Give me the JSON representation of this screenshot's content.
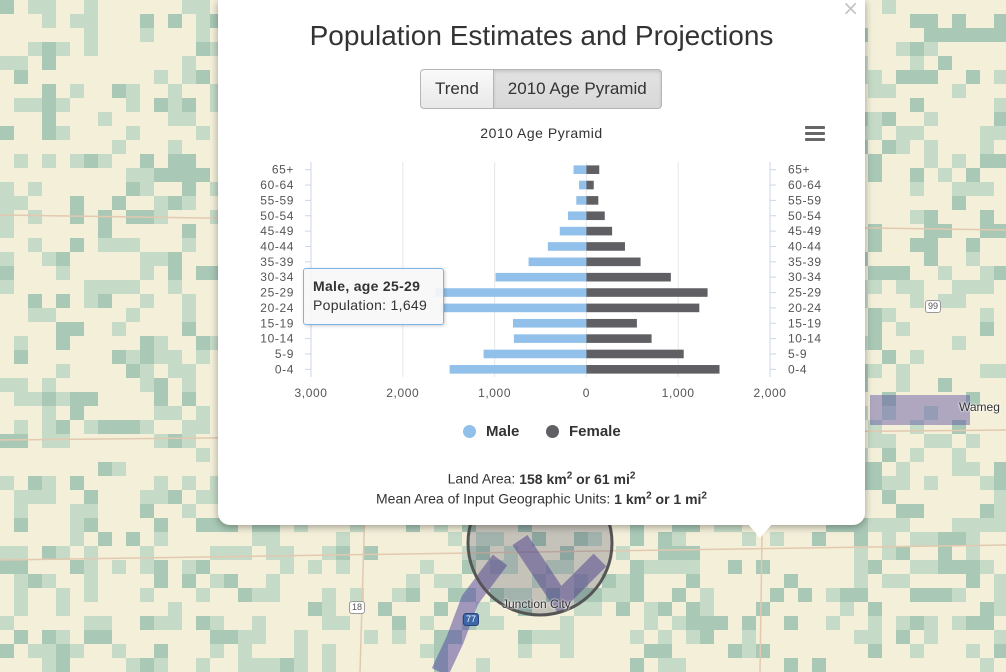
{
  "map": {
    "labels": {
      "place_junction_city": "Junction City",
      "place_wamego": "Wameg"
    },
    "shields": {
      "highway_99": "99",
      "highway_18": "18",
      "highway_77": "77"
    },
    "colors": {
      "base": "#f3efd9",
      "green_light": "#c5dac7",
      "green_mid": "#a9c8b6",
      "purple": "#5b4fa0"
    }
  },
  "popup": {
    "close_glyph": "×",
    "title": "Population Estimates and Projections",
    "tabs": [
      {
        "label": "Trend"
      },
      {
        "label": "2010 Age Pyramid"
      }
    ],
    "active_tab": "2010 Age Pyramid",
    "menu_icon": "hamburger-menu-icon",
    "area": {
      "land_prefix": "Land Area: ",
      "land_km": "158 km",
      "land_sep": " or ",
      "land_mi": "61 mi",
      "unit_prefix": "Mean Area of Input Geographic Units: ",
      "unit_km": "1 km",
      "unit_sep": " or ",
      "unit_mi": "1 mi",
      "exponent": "2"
    }
  },
  "tooltip": {
    "title": "Male, age 25-29",
    "body": "Population: 1,649"
  },
  "chart_data": {
    "type": "bar",
    "orientation": "horizontal-pyramid",
    "title": "2010 Age Pyramid",
    "categories": [
      "0-4",
      "5-9",
      "10-14",
      "15-19",
      "20-24",
      "25-29",
      "30-34",
      "35-39",
      "40-44",
      "45-49",
      "50-54",
      "55-59",
      "60-64",
      "65+"
    ],
    "series": [
      {
        "name": "Male",
        "color": "#91c0ea",
        "values": [
          1490,
          1120,
          790,
          800,
          1590,
          1649,
          990,
          630,
          420,
          290,
          200,
          110,
          80,
          140
        ]
      },
      {
        "name": "Female",
        "color": "#606064",
        "values": [
          1450,
          1060,
          710,
          550,
          1230,
          1320,
          920,
          590,
          420,
          280,
          200,
          130,
          80,
          140
        ]
      }
    ],
    "xlim": [
      -3000,
      2000
    ],
    "x_ticks": [
      "3,000",
      "2,000",
      "1,000",
      "0",
      "1,000",
      "2,000"
    ],
    "x_tick_values": [
      -3000,
      -2000,
      -1000,
      0,
      1000,
      2000
    ],
    "grid": true,
    "legend": "bottom-center"
  }
}
